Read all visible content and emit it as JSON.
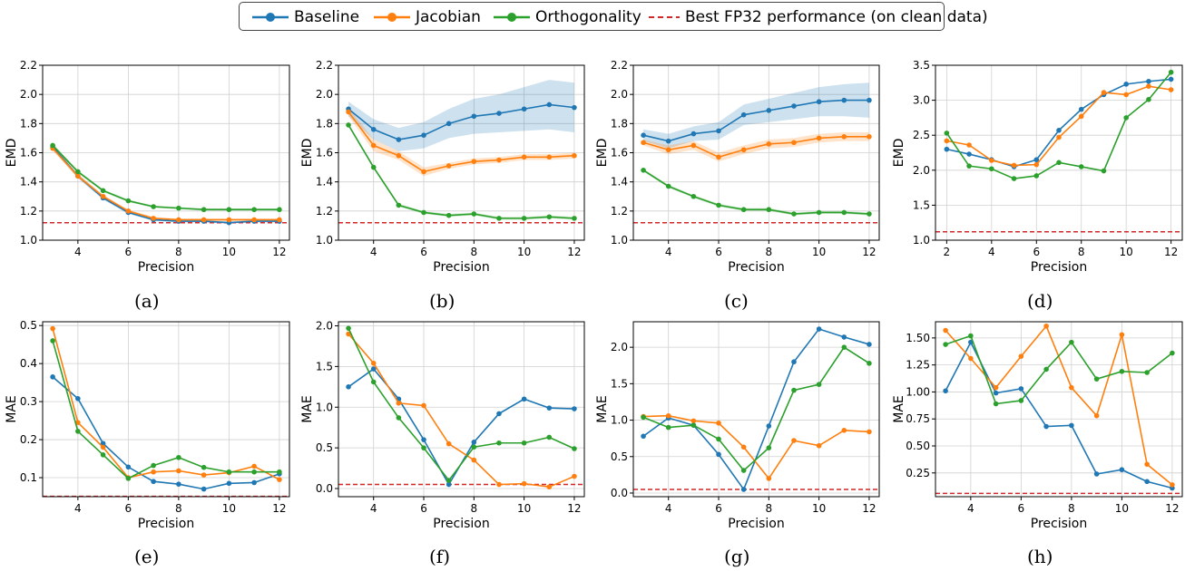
{
  "colors": {
    "baseline": "#1f77b4",
    "jacobian": "#ff7f0e",
    "orthogonality": "#2ca02c",
    "reference": "#d62728"
  },
  "legend": [
    {
      "name": "Baseline",
      "color": "#1f77b4",
      "style": "line-marker"
    },
    {
      "name": "Jacobian",
      "color": "#ff7f0e",
      "style": "line-marker"
    },
    {
      "name": "Orthogonality",
      "color": "#2ca02c",
      "style": "line-marker"
    },
    {
      "name": "Best FP32 performance (on clean data)",
      "color": "#d62728",
      "style": "dashed"
    }
  ],
  "chart_data": [
    {
      "type": "line",
      "caption": "(a)",
      "xlabel": "Precision",
      "ylabel": "EMD",
      "xlim": [
        2.6,
        12.4
      ],
      "ylim": [
        1.0,
        2.2
      ],
      "xticks": [
        4,
        6,
        8,
        10,
        12
      ],
      "yticks": [
        {
          "v": 1.0,
          "label": "1.0"
        },
        {
          "v": 1.2,
          "label": "1.2"
        },
        {
          "v": 1.4,
          "label": "1.4"
        },
        {
          "v": 1.6,
          "label": "1.6"
        },
        {
          "v": 1.8,
          "label": "1.8"
        },
        {
          "v": 2.0,
          "label": "2.0"
        },
        {
          "v": 2.2,
          "label": "2.2"
        }
      ],
      "reference": 1.12,
      "grid": true,
      "series": [
        {
          "name": "Baseline",
          "x": [
            3,
            4,
            5,
            6,
            7,
            8,
            9,
            10,
            11,
            12
          ],
          "y": [
            1.64,
            1.44,
            1.29,
            1.19,
            1.14,
            1.13,
            1.13,
            1.12,
            1.13,
            1.13
          ],
          "band": [
            0.015,
            0.015,
            0.012,
            0.01,
            0.008,
            0.008,
            0.008,
            0.008,
            0.008,
            0.008
          ]
        },
        {
          "name": "Jacobian",
          "x": [
            3,
            4,
            5,
            6,
            7,
            8,
            9,
            10,
            11,
            12
          ],
          "y": [
            1.63,
            1.44,
            1.3,
            1.2,
            1.15,
            1.14,
            1.14,
            1.14,
            1.14,
            1.14
          ],
          "band": [
            0.015,
            0.015,
            0.012,
            0.01,
            0.01,
            0.008,
            0.008,
            0.008,
            0.008,
            0.008
          ]
        },
        {
          "name": "Orthogonality",
          "x": [
            3,
            4,
            5,
            6,
            7,
            8,
            9,
            10,
            11,
            12
          ],
          "y": [
            1.65,
            1.47,
            1.34,
            1.27,
            1.23,
            1.22,
            1.21,
            1.21,
            1.21,
            1.21
          ],
          "band": [
            0.012,
            0.01,
            0.01,
            0.008,
            0.008,
            0.008,
            0.008,
            0.008,
            0.008,
            0.008
          ]
        }
      ]
    },
    {
      "type": "line",
      "caption": "(b)",
      "xlabel": "Precision",
      "ylabel": "EMD",
      "xlim": [
        2.6,
        12.4
      ],
      "ylim": [
        1.0,
        2.2
      ],
      "xticks": [
        4,
        6,
        8,
        10,
        12
      ],
      "yticks": [
        {
          "v": 1.0,
          "label": "1.0"
        },
        {
          "v": 1.2,
          "label": "1.2"
        },
        {
          "v": 1.4,
          "label": "1.4"
        },
        {
          "v": 1.6,
          "label": "1.6"
        },
        {
          "v": 1.8,
          "label": "1.8"
        },
        {
          "v": 2.0,
          "label": "2.0"
        },
        {
          "v": 2.2,
          "label": "2.2"
        }
      ],
      "reference": 1.12,
      "grid": true,
      "series": [
        {
          "name": "Baseline",
          "x": [
            3,
            4,
            5,
            6,
            7,
            8,
            9,
            10,
            11,
            12
          ],
          "y": [
            1.9,
            1.76,
            1.69,
            1.72,
            1.8,
            1.85,
            1.87,
            1.9,
            1.93,
            1.91
          ],
          "band": [
            0.05,
            0.07,
            0.08,
            0.09,
            0.1,
            0.12,
            0.13,
            0.15,
            0.17,
            0.17
          ]
        },
        {
          "name": "Jacobian",
          "x": [
            3,
            4,
            5,
            6,
            7,
            8,
            9,
            10,
            11,
            12
          ],
          "y": [
            1.88,
            1.65,
            1.58,
            1.47,
            1.51,
            1.54,
            1.55,
            1.57,
            1.57,
            1.58
          ],
          "band": [
            0.03,
            0.04,
            0.03,
            0.03,
            0.02,
            0.02,
            0.02,
            0.02,
            0.02,
            0.02
          ]
        },
        {
          "name": "Orthogonality",
          "x": [
            3,
            4,
            5,
            6,
            7,
            8,
            9,
            10,
            11,
            12
          ],
          "y": [
            1.79,
            1.5,
            1.24,
            1.19,
            1.17,
            1.18,
            1.15,
            1.15,
            1.16,
            1.15
          ],
          "band": [
            0.01,
            0.01,
            0.01,
            0.01,
            0.01,
            0.01,
            0.01,
            0.01,
            0.01,
            0.01
          ]
        }
      ]
    },
    {
      "type": "line",
      "caption": "(c)",
      "xlabel": "Precision",
      "ylabel": "EMD",
      "xlim": [
        2.6,
        12.4
      ],
      "ylim": [
        1.0,
        2.2
      ],
      "xticks": [
        4,
        6,
        8,
        10,
        12
      ],
      "yticks": [
        {
          "v": 1.0,
          "label": "1.0"
        },
        {
          "v": 1.2,
          "label": "1.2"
        },
        {
          "v": 1.4,
          "label": "1.4"
        },
        {
          "v": 1.6,
          "label": "1.6"
        },
        {
          "v": 1.8,
          "label": "1.8"
        },
        {
          "v": 2.0,
          "label": "2.0"
        },
        {
          "v": 2.2,
          "label": "2.2"
        }
      ],
      "reference": 1.12,
      "grid": true,
      "series": [
        {
          "name": "Baseline",
          "x": [
            3,
            4,
            5,
            6,
            7,
            8,
            9,
            10,
            11,
            12
          ],
          "y": [
            1.72,
            1.68,
            1.73,
            1.75,
            1.86,
            1.89,
            1.92,
            1.95,
            1.96,
            1.96
          ],
          "band": [
            0.04,
            0.05,
            0.05,
            0.06,
            0.07,
            0.08,
            0.09,
            0.1,
            0.11,
            0.12
          ]
        },
        {
          "name": "Jacobian",
          "x": [
            3,
            4,
            5,
            6,
            7,
            8,
            9,
            10,
            11,
            12
          ],
          "y": [
            1.67,
            1.62,
            1.65,
            1.57,
            1.62,
            1.66,
            1.67,
            1.7,
            1.71,
            1.71
          ],
          "band": [
            0.02,
            0.03,
            0.03,
            0.03,
            0.03,
            0.03,
            0.03,
            0.03,
            0.03,
            0.03
          ]
        },
        {
          "name": "Orthogonality",
          "x": [
            3,
            4,
            5,
            6,
            7,
            8,
            9,
            10,
            11,
            12
          ],
          "y": [
            1.48,
            1.37,
            1.3,
            1.24,
            1.21,
            1.21,
            1.18,
            1.19,
            1.19,
            1.18
          ],
          "band": [
            0.01,
            0.01,
            0.01,
            0.01,
            0.01,
            0.01,
            0.01,
            0.01,
            0.01,
            0.01
          ]
        }
      ]
    },
    {
      "type": "line",
      "caption": "(d)",
      "xlabel": "Precision",
      "ylabel": "EMD",
      "xlim": [
        1.5,
        12.5
      ],
      "ylim": [
        1.0,
        3.5
      ],
      "xticks": [
        2,
        4,
        6,
        8,
        10,
        12
      ],
      "yticks": [
        {
          "v": 1.0,
          "label": "1.0"
        },
        {
          "v": 1.5,
          "label": "1.5"
        },
        {
          "v": 2.0,
          "label": "2.0"
        },
        {
          "v": 2.5,
          "label": "2.5"
        },
        {
          "v": 3.0,
          "label": "3.0"
        },
        {
          "v": 3.5,
          "label": "3.5"
        }
      ],
      "reference": 1.12,
      "grid": true,
      "series": [
        {
          "name": "Baseline",
          "x": [
            2,
            3,
            4,
            5,
            6,
            7,
            8,
            9,
            10,
            11,
            12
          ],
          "y": [
            2.3,
            2.23,
            2.15,
            2.05,
            2.15,
            2.57,
            2.87,
            3.08,
            3.23,
            3.27,
            3.3
          ]
        },
        {
          "name": "Jacobian",
          "x": [
            2,
            3,
            4,
            5,
            6,
            7,
            8,
            9,
            10,
            11,
            12
          ],
          "y": [
            2.42,
            2.36,
            2.14,
            2.07,
            2.08,
            2.47,
            2.77,
            3.11,
            3.08,
            3.2,
            3.15
          ]
        },
        {
          "name": "Orthogonality",
          "x": [
            2,
            3,
            4,
            5,
            6,
            7,
            8,
            9,
            10,
            11,
            12
          ],
          "y": [
            2.53,
            2.06,
            2.02,
            1.88,
            1.92,
            2.11,
            2.05,
            1.99,
            2.75,
            3.01,
            3.4
          ]
        }
      ]
    },
    {
      "type": "line",
      "caption": "(e)",
      "xlabel": "Precision",
      "ylabel": "MAE",
      "xlim": [
        2.6,
        12.4
      ],
      "ylim": [
        0.05,
        0.51
      ],
      "xticks": [
        4,
        6,
        8,
        10,
        12
      ],
      "yticks": [
        {
          "v": 0.1,
          "label": "0.1"
        },
        {
          "v": 0.2,
          "label": "0.2"
        },
        {
          "v": 0.3,
          "label": "0.3"
        },
        {
          "v": 0.4,
          "label": "0.4"
        },
        {
          "v": 0.5,
          "label": "0.5"
        }
      ],
      "reference": 0.051,
      "grid": true,
      "series": [
        {
          "name": "Baseline",
          "x": [
            3,
            4,
            5,
            6,
            7,
            8,
            9,
            10,
            11,
            12
          ],
          "y": [
            0.365,
            0.308,
            0.19,
            0.128,
            0.09,
            0.083,
            0.07,
            0.085,
            0.087,
            0.11
          ]
        },
        {
          "name": "Jacobian",
          "x": [
            3,
            4,
            5,
            6,
            7,
            8,
            9,
            10,
            11,
            12
          ],
          "y": [
            0.492,
            0.245,
            0.18,
            0.1,
            0.115,
            0.118,
            0.107,
            0.113,
            0.13,
            0.095
          ]
        },
        {
          "name": "Orthogonality",
          "x": [
            3,
            4,
            5,
            6,
            7,
            8,
            9,
            10,
            11,
            12
          ],
          "y": [
            0.46,
            0.222,
            0.16,
            0.098,
            0.132,
            0.153,
            0.127,
            0.115,
            0.115,
            0.115
          ]
        }
      ]
    },
    {
      "type": "line",
      "caption": "(f)",
      "xlabel": "Precision",
      "ylabel": "MAE",
      "xlim": [
        2.6,
        12.4
      ],
      "ylim": [
        -0.1,
        2.05
      ],
      "xticks": [
        4,
        6,
        8,
        10,
        12
      ],
      "yticks": [
        {
          "v": 0.0,
          "label": "0.0"
        },
        {
          "v": 0.5,
          "label": "0.5"
        },
        {
          "v": 1.0,
          "label": "1.0"
        },
        {
          "v": 1.5,
          "label": "1.5"
        },
        {
          "v": 2.0,
          "label": "2.0"
        }
      ],
      "reference": 0.05,
      "grid": true,
      "series": [
        {
          "name": "Baseline",
          "x": [
            3,
            4,
            5,
            6,
            7,
            8,
            9,
            10,
            11,
            12
          ],
          "y": [
            1.25,
            1.47,
            1.1,
            0.6,
            0.05,
            0.57,
            0.92,
            1.1,
            0.99,
            0.98
          ]
        },
        {
          "name": "Jacobian",
          "x": [
            3,
            4,
            5,
            6,
            7,
            8,
            9,
            10,
            11,
            12
          ],
          "y": [
            1.9,
            1.54,
            1.05,
            1.02,
            0.55,
            0.35,
            0.05,
            0.06,
            0.02,
            0.15
          ]
        },
        {
          "name": "Orthogonality",
          "x": [
            3,
            4,
            5,
            6,
            7,
            8,
            9,
            10,
            11,
            12
          ],
          "y": [
            1.97,
            1.31,
            0.87,
            0.5,
            0.1,
            0.51,
            0.56,
            0.56,
            0.63,
            0.49
          ]
        }
      ]
    },
    {
      "type": "line",
      "caption": "(g)",
      "xlabel": "Precision",
      "ylabel": "MAE",
      "xlim": [
        2.6,
        12.4
      ],
      "ylim": [
        -0.05,
        2.35
      ],
      "xticks": [
        4,
        6,
        8,
        10,
        12
      ],
      "yticks": [
        {
          "v": 0.0,
          "label": "0.0"
        },
        {
          "v": 0.5,
          "label": "0.5"
        },
        {
          "v": 1.0,
          "label": "1.0"
        },
        {
          "v": 1.5,
          "label": "1.5"
        },
        {
          "v": 2.0,
          "label": "2.0"
        }
      ],
      "reference": 0.05,
      "grid": true,
      "series": [
        {
          "name": "Baseline",
          "x": [
            3,
            4,
            5,
            6,
            7,
            8,
            9,
            10,
            11,
            12
          ],
          "y": [
            0.78,
            1.03,
            0.93,
            0.53,
            0.05,
            0.92,
            1.8,
            2.25,
            2.14,
            2.04
          ]
        },
        {
          "name": "Jacobian",
          "x": [
            3,
            4,
            5,
            6,
            7,
            8,
            9,
            10,
            11,
            12
          ],
          "y": [
            1.05,
            1.06,
            0.99,
            0.96,
            0.63,
            0.2,
            0.72,
            0.65,
            0.86,
            0.84
          ]
        },
        {
          "name": "Orthogonality",
          "x": [
            3,
            4,
            5,
            6,
            7,
            8,
            9,
            10,
            11,
            12
          ],
          "y": [
            1.04,
            0.9,
            0.93,
            0.74,
            0.31,
            0.62,
            1.41,
            1.49,
            2.0,
            1.78
          ]
        }
      ]
    },
    {
      "type": "line",
      "caption": "(h)",
      "xlabel": "Precision",
      "ylabel": "MAE",
      "xlim": [
        2.6,
        12.4
      ],
      "ylim": [
        0.03,
        1.65
      ],
      "xticks": [
        4,
        6,
        8,
        10,
        12
      ],
      "yticks": [
        {
          "v": 0.25,
          "label": "0.25"
        },
        {
          "v": 0.5,
          "label": "0.50"
        },
        {
          "v": 0.75,
          "label": "0.75"
        },
        {
          "v": 1.0,
          "label": "1.00"
        },
        {
          "v": 1.25,
          "label": "1.25"
        },
        {
          "v": 1.5,
          "label": "1.50"
        }
      ],
      "reference": 0.06,
      "grid": true,
      "series": [
        {
          "name": "Baseline",
          "x": [
            3,
            4,
            5,
            6,
            7,
            8,
            9,
            10,
            11,
            12
          ],
          "y": [
            1.01,
            1.46,
            0.99,
            1.03,
            0.68,
            0.69,
            0.24,
            0.28,
            0.17,
            0.11
          ]
        },
        {
          "name": "Jacobian",
          "x": [
            3,
            4,
            5,
            6,
            7,
            8,
            9,
            10,
            11,
            12
          ],
          "y": [
            1.57,
            1.31,
            1.04,
            1.33,
            1.61,
            1.04,
            0.78,
            1.53,
            0.33,
            0.14
          ]
        },
        {
          "name": "Orthogonality",
          "x": [
            3,
            4,
            5,
            6,
            7,
            8,
            9,
            10,
            11,
            12
          ],
          "y": [
            1.44,
            1.52,
            0.89,
            0.92,
            1.21,
            1.46,
            1.12,
            1.19,
            1.18,
            1.36
          ]
        }
      ]
    }
  ]
}
